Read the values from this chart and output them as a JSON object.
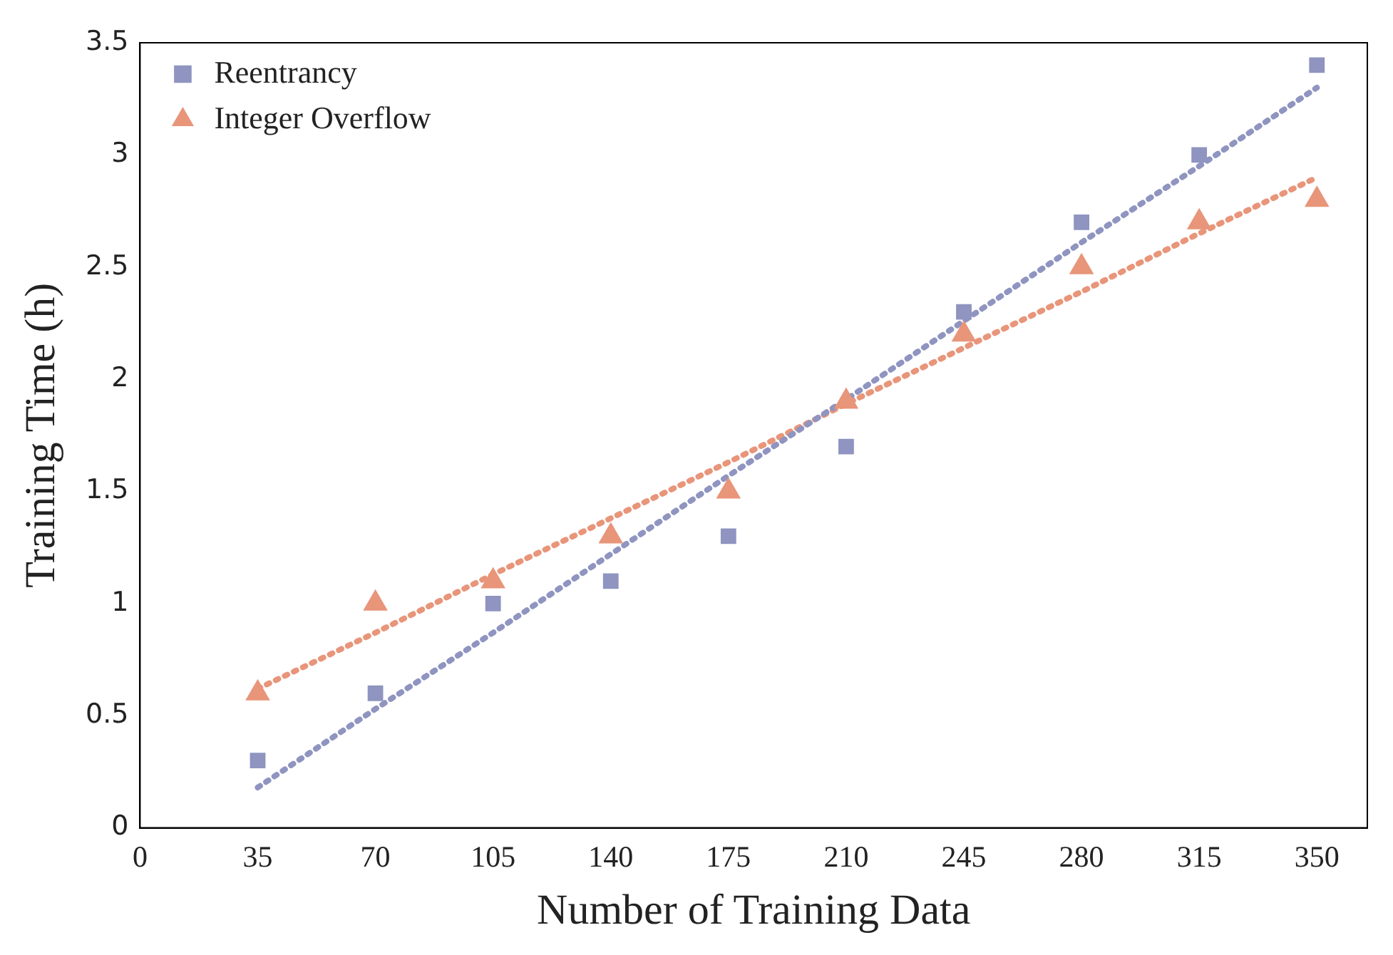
{
  "chart_data": {
    "type": "scatter",
    "xlabel": "Number of Training Data",
    "ylabel": "Training Time (h)",
    "x": [
      35,
      70,
      105,
      140,
      175,
      210,
      245,
      280,
      315,
      350
    ],
    "series": [
      {
        "name": "Reentrancy",
        "color": "#8f94c0",
        "marker": "square",
        "values": [
          0.3,
          0.6,
          1.0,
          1.1,
          1.3,
          1.7,
          2.3,
          2.7,
          3.0,
          3.4
        ]
      },
      {
        "name": "Integer Overflow",
        "color": "#e8957a",
        "marker": "triangle",
        "values": [
          0.6,
          1.0,
          1.1,
          1.3,
          1.5,
          1.9,
          2.2,
          2.5,
          2.7,
          2.8
        ]
      },
      {
        "type": "line",
        "color": "#8f94c0",
        "line_style": "dotted",
        "marker": "none",
        "values": [
          0.18,
          0.53,
          0.87,
          1.22,
          1.57,
          1.91,
          2.26,
          2.61,
          2.95,
          3.3
        ]
      },
      {
        "type": "line",
        "color": "#e8957a",
        "line_style": "dotted",
        "marker": "none",
        "values": [
          0.62,
          0.87,
          1.13,
          1.38,
          1.63,
          1.89,
          2.14,
          2.39,
          2.65,
          2.9
        ]
      }
    ],
    "xlim": [
      0,
      365
    ],
    "xticks": [
      0,
      35,
      70,
      105,
      140,
      175,
      210,
      245,
      280,
      315,
      350
    ],
    "ylim": [
      0,
      3.5
    ],
    "yticks": [
      0,
      0.5,
      1,
      1.5,
      2,
      2.5,
      3,
      3.5
    ],
    "grid": false,
    "legend": "top left"
  }
}
